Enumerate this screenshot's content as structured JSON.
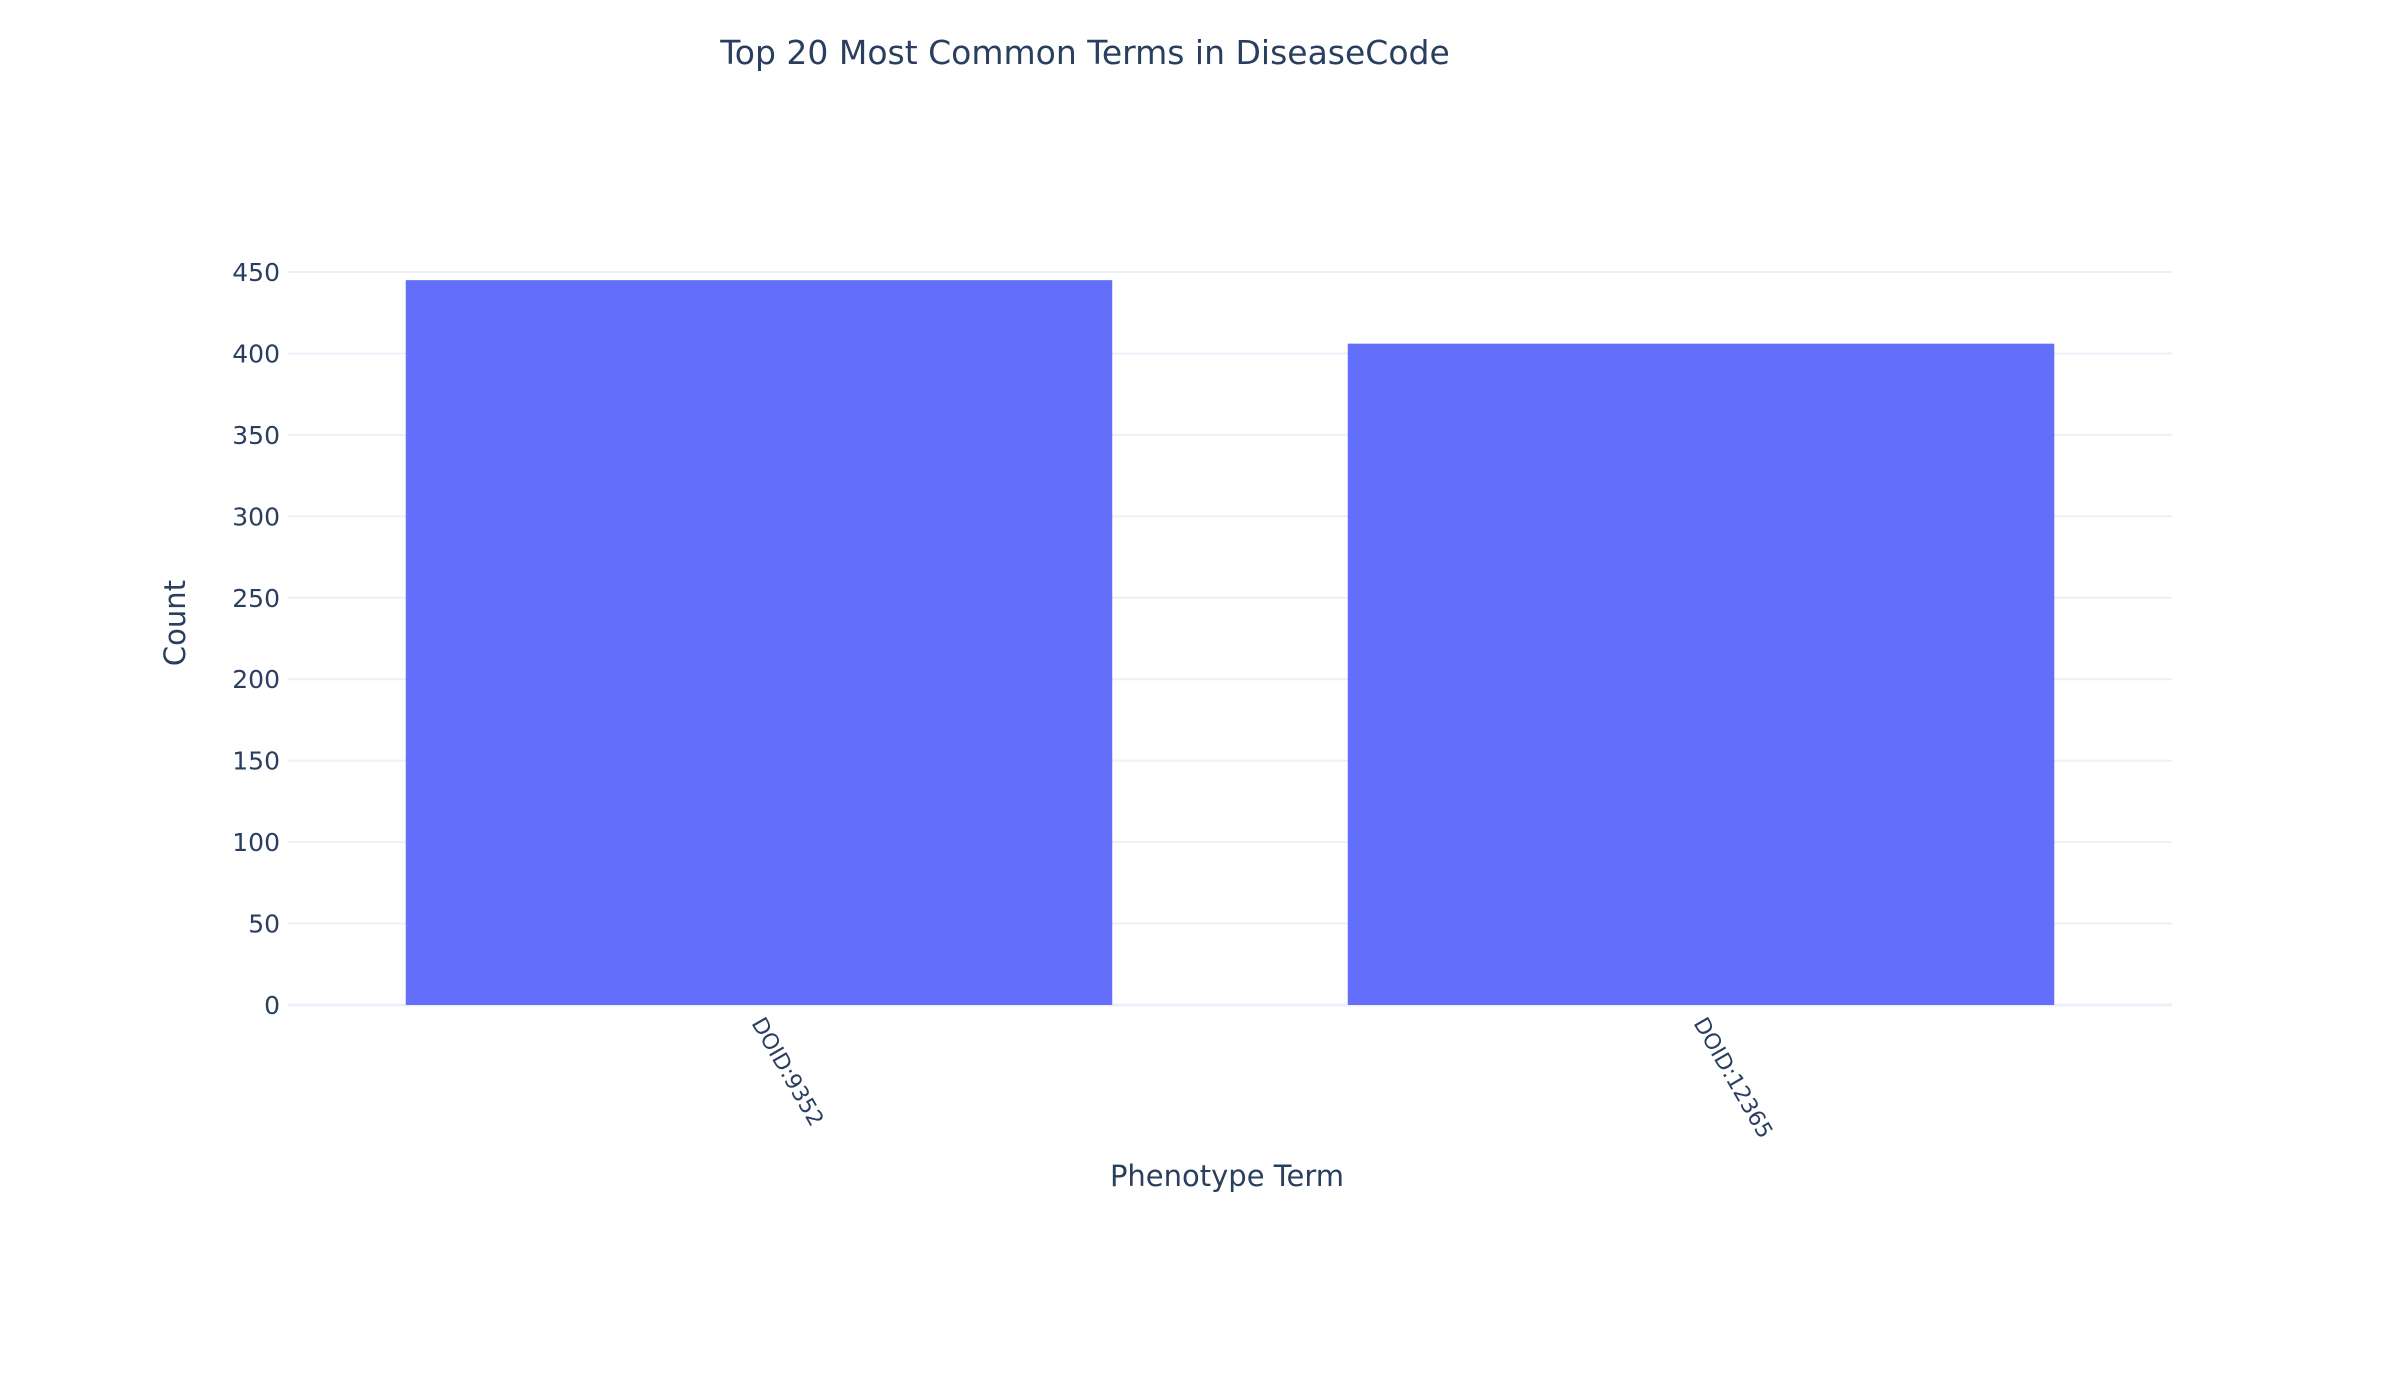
{
  "chart_data": {
    "type": "bar",
    "title": "Top 20 Most Common Terms in DiseaseCode",
    "xlabel": "Phenotype Term",
    "ylabel": "Count",
    "categories": [
      "DOID:9352",
      "DOID:12365"
    ],
    "values": [
      445,
      406
    ],
    "ylim": [
      0,
      450
    ],
    "yticks": [
      0,
      50,
      100,
      150,
      200,
      250,
      300,
      350,
      400,
      450
    ],
    "grid": true,
    "legend": "none",
    "bar_color": "#636efa",
    "grid_color": "#ebf0f8",
    "text_color": "#2a3f5f"
  }
}
